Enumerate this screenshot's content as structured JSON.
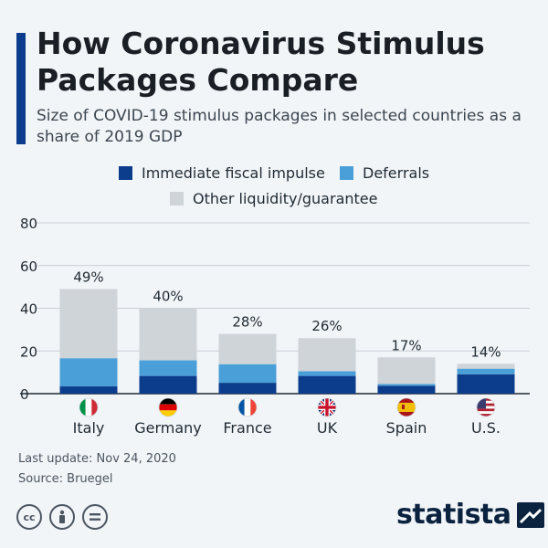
{
  "header": {
    "title": "How Coronavirus Stimulus Packages Compare",
    "subtitle": "Size of COVID-19 stimulus packages in selected countries as a share of 2019 GDP"
  },
  "colors": {
    "accent": "#0c3d8c",
    "immediate": "#0c3d8c",
    "deferrals": "#4a9fd8",
    "other": "#cfd4d9"
  },
  "chart_data": {
    "type": "bar",
    "stacked": true,
    "categories": [
      "Italy",
      "Germany",
      "France",
      "UK",
      "Spain",
      "U.S."
    ],
    "flags": [
      "italy-flag-icon",
      "germany-flag-icon",
      "france-flag-icon",
      "uk-flag-icon",
      "spain-flag-icon",
      "us-flag-icon"
    ],
    "series": [
      {
        "name": "Immediate fiscal impulse",
        "values": [
          3.4,
          8.3,
          5.1,
          8.3,
          3.7,
          9.1
        ]
      },
      {
        "name": "Deferrals",
        "values": [
          13.2,
          7.3,
          8.7,
          2.2,
          0.8,
          2.6
        ]
      },
      {
        "name": "Other liquidity/guarantee",
        "values": [
          32.4,
          24.4,
          14.2,
          15.5,
          12.5,
          2.3
        ]
      }
    ],
    "totals_labels": [
      "49%",
      "40%",
      "28%",
      "26%",
      "17%",
      "14%"
    ],
    "totals": [
      49,
      40,
      28,
      26,
      17,
      14
    ],
    "yticks": [
      "0",
      "20",
      "40",
      "60",
      "80"
    ],
    "ylim": [
      0,
      80
    ],
    "grid": true,
    "legend_position": "top-center"
  },
  "footer": {
    "last_update": "Last update: Nov 24, 2020",
    "source": "Source: Bruegel",
    "brand": "statista",
    "license_icons": [
      "cc-icon",
      "by-icon",
      "nd-icon"
    ]
  }
}
